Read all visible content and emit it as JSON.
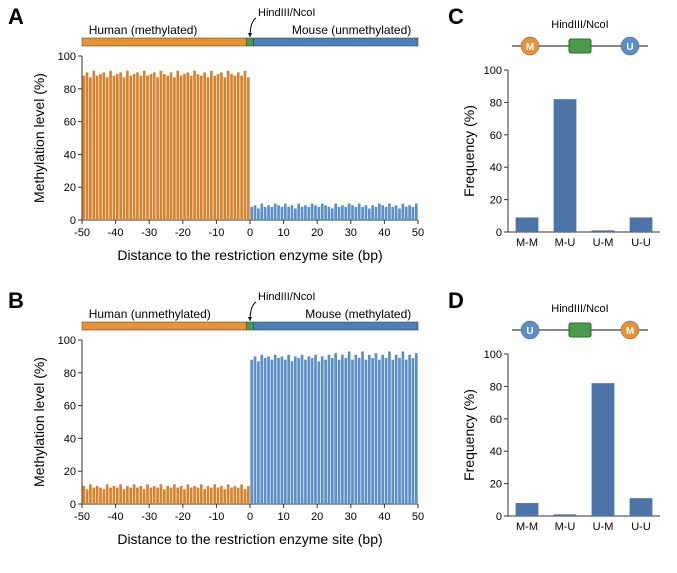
{
  "panelA": {
    "label": "A",
    "topLabelHuman": "Human (methylated)",
    "topLabelMouse": "Mouse (unmethylated)",
    "junctionLabel": "HindIII/NcoI",
    "ylabel": "Methylation level (%)",
    "xlabel": "Distance to the restriction enzyme site (bp)",
    "xlim": [
      -50,
      50
    ],
    "ylim": [
      0,
      100
    ],
    "xtick_step": 10,
    "ytick_step": 20,
    "xticks": [
      -50,
      -40,
      -30,
      -20,
      -10,
      0,
      10,
      20,
      30,
      40,
      50
    ],
    "yticks": [
      0,
      20,
      40,
      60,
      80,
      100
    ],
    "humanValues": [
      88,
      90,
      87,
      91,
      88,
      89,
      90,
      87,
      91,
      88,
      89,
      90,
      87,
      91,
      88,
      89,
      90,
      88,
      91,
      88,
      89,
      90,
      87,
      91,
      89,
      88,
      90,
      87,
      91,
      88,
      89,
      90,
      88,
      91,
      89,
      88,
      90,
      87,
      91,
      88,
      89,
      90,
      87,
      91,
      89,
      88,
      90,
      88,
      91,
      87
    ],
    "mouseValues": [
      8,
      9,
      7,
      10,
      8,
      9,
      8,
      10,
      9,
      8,
      10,
      8,
      9,
      7,
      10,
      8,
      9,
      8,
      10,
      9,
      8,
      10,
      9,
      8,
      7,
      10,
      8,
      9,
      8,
      10,
      9,
      8,
      10,
      8,
      9,
      7,
      9,
      8,
      10,
      9,
      8,
      10,
      8,
      9,
      7,
      10,
      8,
      9,
      8,
      10
    ],
    "humanColor": "#e89235",
    "mouseColor": "#4a7fb8",
    "humanBarColor": "#d9822b",
    "mouseBarColor": "#5b8fc7",
    "junctionColor": "#4a9b4a",
    "axisColor": "#333333",
    "gridColor": "#cccccc"
  },
  "panelB": {
    "label": "B",
    "topLabelHuman": "Human (unmethylated)",
    "topLabelMouse": "Mouse (methylated)",
    "junctionLabel": "HindIII/NcoI",
    "ylabel": "Methylation level (%)",
    "xlabel": "Distance to the restriction enzyme site (bp)",
    "xlim": [
      -50,
      50
    ],
    "ylim": [
      0,
      100
    ],
    "xticks": [
      -50,
      -40,
      -30,
      -20,
      -10,
      0,
      10,
      20,
      30,
      40,
      50
    ],
    "yticks": [
      0,
      20,
      40,
      60,
      80,
      100
    ],
    "humanValues": [
      11,
      9,
      12,
      10,
      11,
      10,
      9,
      12,
      10,
      11,
      10,
      12,
      9,
      11,
      10,
      12,
      10,
      11,
      9,
      12,
      10,
      11,
      10,
      12,
      9,
      11,
      10,
      12,
      10,
      11,
      9,
      12,
      10,
      11,
      10,
      12,
      9,
      11,
      10,
      12,
      10,
      11,
      9,
      12,
      10,
      11,
      10,
      12,
      9,
      11
    ],
    "mouseValues": [
      88,
      90,
      87,
      91,
      89,
      90,
      88,
      91,
      89,
      90,
      88,
      91,
      87,
      90,
      89,
      91,
      88,
      90,
      89,
      91,
      87,
      90,
      88,
      91,
      89,
      92,
      88,
      91,
      89,
      93,
      88,
      91,
      89,
      93,
      88,
      91,
      89,
      92,
      88,
      91,
      89,
      93,
      88,
      91,
      89,
      93,
      88,
      91,
      89,
      92
    ],
    "humanColor": "#e89235",
    "mouseColor": "#4a7fb8",
    "humanBarColor": "#d9822b",
    "mouseBarColor": "#5b8fc7",
    "junctionColor": "#4a9b4a",
    "axisColor": "#333333"
  },
  "panelC": {
    "label": "C",
    "junctionLabel": "HindIII/NcoI",
    "ylabel": "Frequency (%)",
    "categories": [
      "M-M",
      "M-U",
      "U-M",
      "U-U"
    ],
    "values": [
      9,
      82,
      1,
      9
    ],
    "ylim": [
      0,
      100
    ],
    "yticks": [
      0,
      20,
      40,
      60,
      80,
      100
    ],
    "barColor": "#4d74a8",
    "axisColor": "#333333",
    "iconMColor": "#e89235",
    "iconUColor": "#5b8fc7",
    "iconBoxColor": "#4a9b4a",
    "iconLineColor": "#888888"
  },
  "panelD": {
    "label": "D",
    "junctionLabel": "HindIII/NcoI",
    "ylabel": "Frequency (%)",
    "categories": [
      "M-M",
      "M-U",
      "U-M",
      "U-U"
    ],
    "values": [
      8,
      1,
      82,
      11
    ],
    "ylim": [
      0,
      100
    ],
    "yticks": [
      0,
      20,
      40,
      60,
      80,
      100
    ],
    "barColor": "#4d74a8",
    "axisColor": "#333333",
    "iconMColor": "#e89235",
    "iconUColor": "#5b8fc7",
    "iconBoxColor": "#4a9b4a",
    "iconLineColor": "#888888"
  }
}
